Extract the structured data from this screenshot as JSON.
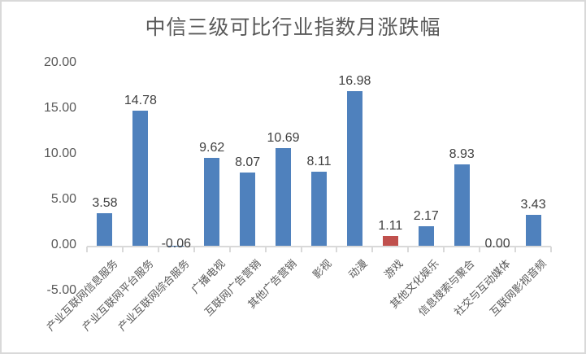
{
  "chart_data": {
    "type": "bar",
    "title": "中信三级可比行业指数月涨跌幅",
    "xlabel": "",
    "ylabel": "",
    "ylim": [
      -5,
      20
    ],
    "yticks": [
      "20.00",
      "15.00",
      "10.00",
      "5.00",
      "0.00",
      "-5.00"
    ],
    "grid": false,
    "legend": null,
    "categories": [
      "产业互联网信息服务",
      "产业互联网平台服务",
      "产业互联网综合服务",
      "广播电视",
      "互联网广告营销",
      "其他广告营销",
      "影视",
      "动漫",
      "游戏",
      "其他文化娱乐",
      "信息搜索与聚合",
      "社交与互动媒体",
      "互联网影视音频"
    ],
    "values": [
      3.58,
      14.78,
      -0.06,
      9.62,
      8.07,
      10.69,
      8.11,
      16.98,
      1.11,
      2.17,
      8.93,
      0.0,
      3.43
    ],
    "value_labels": [
      "3.58",
      "14.78",
      "-0.06",
      "9.62",
      "8.07",
      "10.69",
      "8.11",
      "16.98",
      "1.11",
      "2.17",
      "8.93",
      "0.00",
      "3.43"
    ],
    "colors": [
      "#4f81bd",
      "#4f81bd",
      "#4f81bd",
      "#4f81bd",
      "#4f81bd",
      "#4f81bd",
      "#4f81bd",
      "#4f81bd",
      "#c0504d",
      "#4f81bd",
      "#4f81bd",
      "#4f81bd",
      "#4f81bd"
    ],
    "highlight": {
      "category": "游戏",
      "color": "#c0504d"
    },
    "default_color": "#4f81bd"
  }
}
